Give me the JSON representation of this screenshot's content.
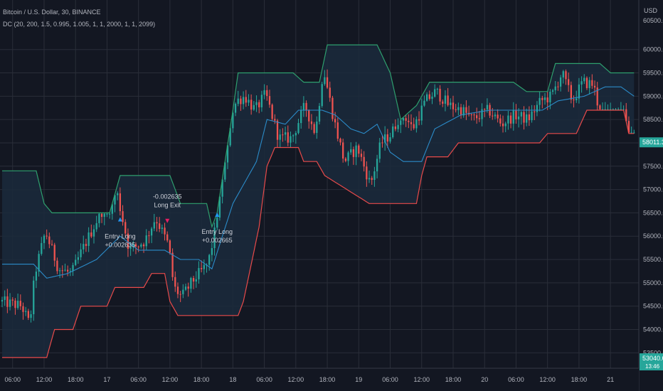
{
  "header": {
    "symbol_line": "Bitcoin / U.S. Dollar, 30, BINANCE",
    "indicator_line": "DC (20, 200, 1.5, 0.995, 1.005, 1, 1, 2000, 1, 1, 2099)",
    "currency": "USD"
  },
  "colors": {
    "background": "#131722",
    "grid": "#2a2e39",
    "up": "#26a69a",
    "down": "#ef5350",
    "upper_band": "#2e9f6e",
    "lower_band": "#e84a4a",
    "mid_band": "#2b8bc8",
    "band_fill": "#1b2a3c",
    "axis_text": "#b2b5be",
    "signal_long": "#2196f3",
    "signal_exit": "#e91e63"
  },
  "chart_data": {
    "type": "candlestick",
    "ylim": [
      53200,
      60300
    ],
    "y_ticks": [
      "60000.00",
      "59500.00",
      "59000.00",
      "58500.00",
      "58000.00",
      "57500.00",
      "57000.00",
      "56500.00",
      "56000.00",
      "55500.00",
      "55000.00",
      "54500.00",
      "54000.00",
      "53500.00"
    ],
    "y_tick_values": [
      60000,
      59500,
      59000,
      58500,
      58000,
      57500,
      57000,
      56500,
      56000,
      55500,
      55000,
      54500,
      54000,
      53500
    ],
    "top_cut_label": "60500.00",
    "last_price_label": "58011.36",
    "last_price_value": 58011.36,
    "bottom_price_label": "53040.67",
    "bottom_price_value": 53040.67,
    "bottom_time_label": "13:46",
    "x_ticks": [
      "06:00",
      "12:00",
      "18:00",
      "17",
      "06:00",
      "12:00",
      "18:00",
      "18",
      "06:00",
      "12:00",
      "18:00",
      "19",
      "06:00",
      "12:00",
      "18:00",
      "20",
      "06:00",
      "12:00",
      "18:00",
      "21"
    ],
    "x_tick_index": [
      4,
      16,
      28,
      40,
      52,
      64,
      76,
      88,
      100,
      112,
      124,
      136,
      148,
      160,
      172,
      184,
      196,
      208,
      220,
      232
    ],
    "bars_visible": 242,
    "price_path": [
      [
        0,
        54600
      ],
      [
        8,
        54500
      ],
      [
        11,
        54100
      ],
      [
        13,
        55200
      ],
      [
        17,
        56100
      ],
      [
        22,
        55300
      ],
      [
        27,
        55200
      ],
      [
        31,
        55700
      ],
      [
        38,
        56500
      ],
      [
        44,
        57000
      ],
      [
        49,
        55700
      ],
      [
        55,
        55900
      ],
      [
        59,
        56400
      ],
      [
        64,
        55800
      ],
      [
        66,
        54900
      ],
      [
        69,
        54700
      ],
      [
        74,
        55100
      ],
      [
        79,
        55400
      ],
      [
        82,
        56200
      ],
      [
        86,
        58400
      ],
      [
        90,
        58900
      ],
      [
        93,
        59000
      ],
      [
        97,
        58700
      ],
      [
        101,
        59050
      ],
      [
        106,
        58100
      ],
      [
        111,
        58100
      ],
      [
        116,
        58800
      ],
      [
        120,
        58200
      ],
      [
        123,
        59600
      ],
      [
        127,
        58500
      ],
      [
        131,
        57600
      ],
      [
        136,
        57900
      ],
      [
        141,
        57100
      ],
      [
        145,
        58000
      ],
      [
        149,
        58200
      ],
      [
        153,
        58700
      ],
      [
        157,
        58300
      ],
      [
        162,
        58900
      ],
      [
        166,
        59100
      ],
      [
        171,
        58800
      ],
      [
        176,
        58700
      ],
      [
        180,
        58500
      ],
      [
        186,
        58700
      ],
      [
        191,
        58400
      ],
      [
        196,
        58600
      ],
      [
        201,
        58500
      ],
      [
        206,
        58900
      ],
      [
        210,
        59000
      ],
      [
        214,
        59500
      ],
      [
        218,
        58900
      ],
      [
        222,
        59300
      ],
      [
        226,
        59250
      ],
      [
        229,
        58500
      ],
      [
        234,
        58600
      ],
      [
        237,
        58400
      ],
      [
        239,
        58000
      ],
      [
        241,
        58011
      ]
    ],
    "upper_band": [
      [
        0,
        57400
      ],
      [
        13,
        57400
      ],
      [
        16,
        56700
      ],
      [
        19,
        56500
      ],
      [
        41,
        56500
      ],
      [
        45,
        57300
      ],
      [
        64,
        57300
      ],
      [
        68,
        56700
      ],
      [
        78,
        56700
      ],
      [
        80,
        56200
      ],
      [
        82,
        56500
      ],
      [
        85,
        57600
      ],
      [
        88,
        58700
      ],
      [
        90,
        59500
      ],
      [
        111,
        59500
      ],
      [
        115,
        59300
      ],
      [
        121,
        59300
      ],
      [
        124,
        60100
      ],
      [
        143,
        60100
      ],
      [
        148,
        59500
      ],
      [
        152,
        58500
      ],
      [
        158,
        58800
      ],
      [
        163,
        59300
      ],
      [
        195,
        59300
      ],
      [
        200,
        59100
      ],
      [
        208,
        59100
      ],
      [
        211,
        59700
      ],
      [
        228,
        59700
      ],
      [
        232,
        59500
      ],
      [
        241,
        59500
      ]
    ],
    "lower_band": [
      [
        0,
        53400
      ],
      [
        17,
        53400
      ],
      [
        20,
        54000
      ],
      [
        27,
        54000
      ],
      [
        30,
        54500
      ],
      [
        40,
        54500
      ],
      [
        43,
        54900
      ],
      [
        54,
        54900
      ],
      [
        57,
        55200
      ],
      [
        62,
        55200
      ],
      [
        64,
        54600
      ],
      [
        67,
        54300
      ],
      [
        90,
        54300
      ],
      [
        92,
        54600
      ],
      [
        95,
        55400
      ],
      [
        98,
        56200
      ],
      [
        101,
        57500
      ],
      [
        104,
        57900
      ],
      [
        113,
        57900
      ],
      [
        115,
        57600
      ],
      [
        120,
        57600
      ],
      [
        123,
        57300
      ],
      [
        140,
        56700
      ],
      [
        158,
        56700
      ],
      [
        160,
        57300
      ],
      [
        162,
        57700
      ],
      [
        170,
        57700
      ],
      [
        174,
        58000
      ],
      [
        205,
        58000
      ],
      [
        208,
        58200
      ],
      [
        219,
        58200
      ],
      [
        223,
        58700
      ],
      [
        237,
        58700
      ],
      [
        239,
        58200
      ],
      [
        241,
        58200
      ]
    ],
    "mid_band": [
      [
        0,
        55400
      ],
      [
        12,
        55400
      ],
      [
        17,
        55100
      ],
      [
        25,
        55200
      ],
      [
        36,
        55500
      ],
      [
        45,
        56000
      ],
      [
        52,
        55700
      ],
      [
        62,
        55700
      ],
      [
        68,
        55500
      ],
      [
        75,
        55500
      ],
      [
        80,
        55300
      ],
      [
        84,
        56000
      ],
      [
        88,
        56700
      ],
      [
        92,
        57100
      ],
      [
        97,
        57600
      ],
      [
        101,
        58500
      ],
      [
        108,
        58400
      ],
      [
        113,
        58700
      ],
      [
        122,
        58700
      ],
      [
        127,
        58600
      ],
      [
        133,
        58300
      ],
      [
        138,
        58200
      ],
      [
        143,
        58400
      ],
      [
        148,
        57800
      ],
      [
        153,
        57600
      ],
      [
        160,
        57600
      ],
      [
        165,
        58300
      ],
      [
        175,
        58600
      ],
      [
        186,
        58700
      ],
      [
        196,
        58700
      ],
      [
        206,
        58700
      ],
      [
        212,
        58900
      ],
      [
        222,
        59000
      ],
      [
        230,
        59200
      ],
      [
        236,
        59200
      ],
      [
        241,
        59000
      ]
    ],
    "signals": [
      {
        "bar": 45,
        "price": 55950,
        "lines": [
          "Entry Long",
          "+0.002635"
        ]
      },
      {
        "bar": 63,
        "price": 56800,
        "lines": [
          "-0.002635",
          "Long Exit"
        ]
      },
      {
        "bar": 82,
        "price": 56050,
        "lines": [
          "Entry Long",
          "+0.002665"
        ]
      }
    ]
  }
}
